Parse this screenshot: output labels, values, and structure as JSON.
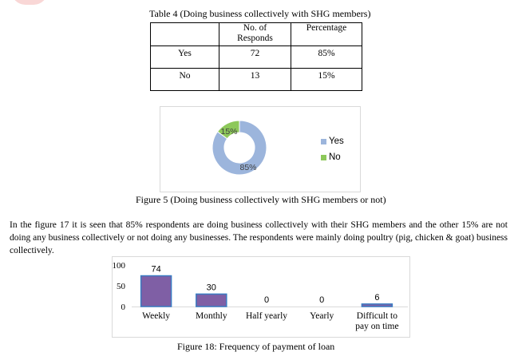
{
  "colors": {
    "yes": "#9cb5dc",
    "no": "#8dc85a",
    "bar": "#7f5fa5",
    "bar_border": "#3a7cc2"
  },
  "table4": {
    "caption": "Table 4 (Doing business collectively with SHG members)",
    "header": {
      "col1": "",
      "col2_line1": "No. of",
      "col2_line2": "Responds",
      "col3": "Percentage"
    },
    "rows": [
      {
        "label": "Yes",
        "count": "72",
        "percent": "85%"
      },
      {
        "label": "No",
        "count": "13",
        "percent": "15%"
      }
    ]
  },
  "figure5": {
    "caption": "Figure 5 (Doing business collectively with SHG members or not)",
    "chart_data": {
      "type": "pie",
      "labels": [
        "Yes",
        "No"
      ],
      "values": [
        85,
        15
      ],
      "data_labels": [
        "85%",
        "15%"
      ],
      "donut": true,
      "legend": "right"
    }
  },
  "paragraph": "In the figure 17 it is seen that 85% respondents are doing business collectively with their SHG members and the other 15% are not doing any business collectively or not doing any businesses. The respondents were mainly doing poultry (pig, chicken & goat) business collectively.",
  "figure18": {
    "caption": "Figure 18: Frequency of payment of loan",
    "chart_data": {
      "type": "bar",
      "categories": [
        "Weekly",
        "Monthly",
        "Half yearly",
        "Yearly",
        "Difficult to pay on time"
      ],
      "category_lines": [
        [
          "Weekly"
        ],
        [
          "Monthly"
        ],
        [
          "Half yearly"
        ],
        [
          "Yearly"
        ],
        [
          "Difficult to",
          "pay on time"
        ]
      ],
      "values": [
        74,
        30,
        0,
        0,
        6
      ],
      "ylim": [
        0,
        100
      ],
      "yticks": [
        0,
        50,
        100
      ],
      "grid": false
    }
  }
}
